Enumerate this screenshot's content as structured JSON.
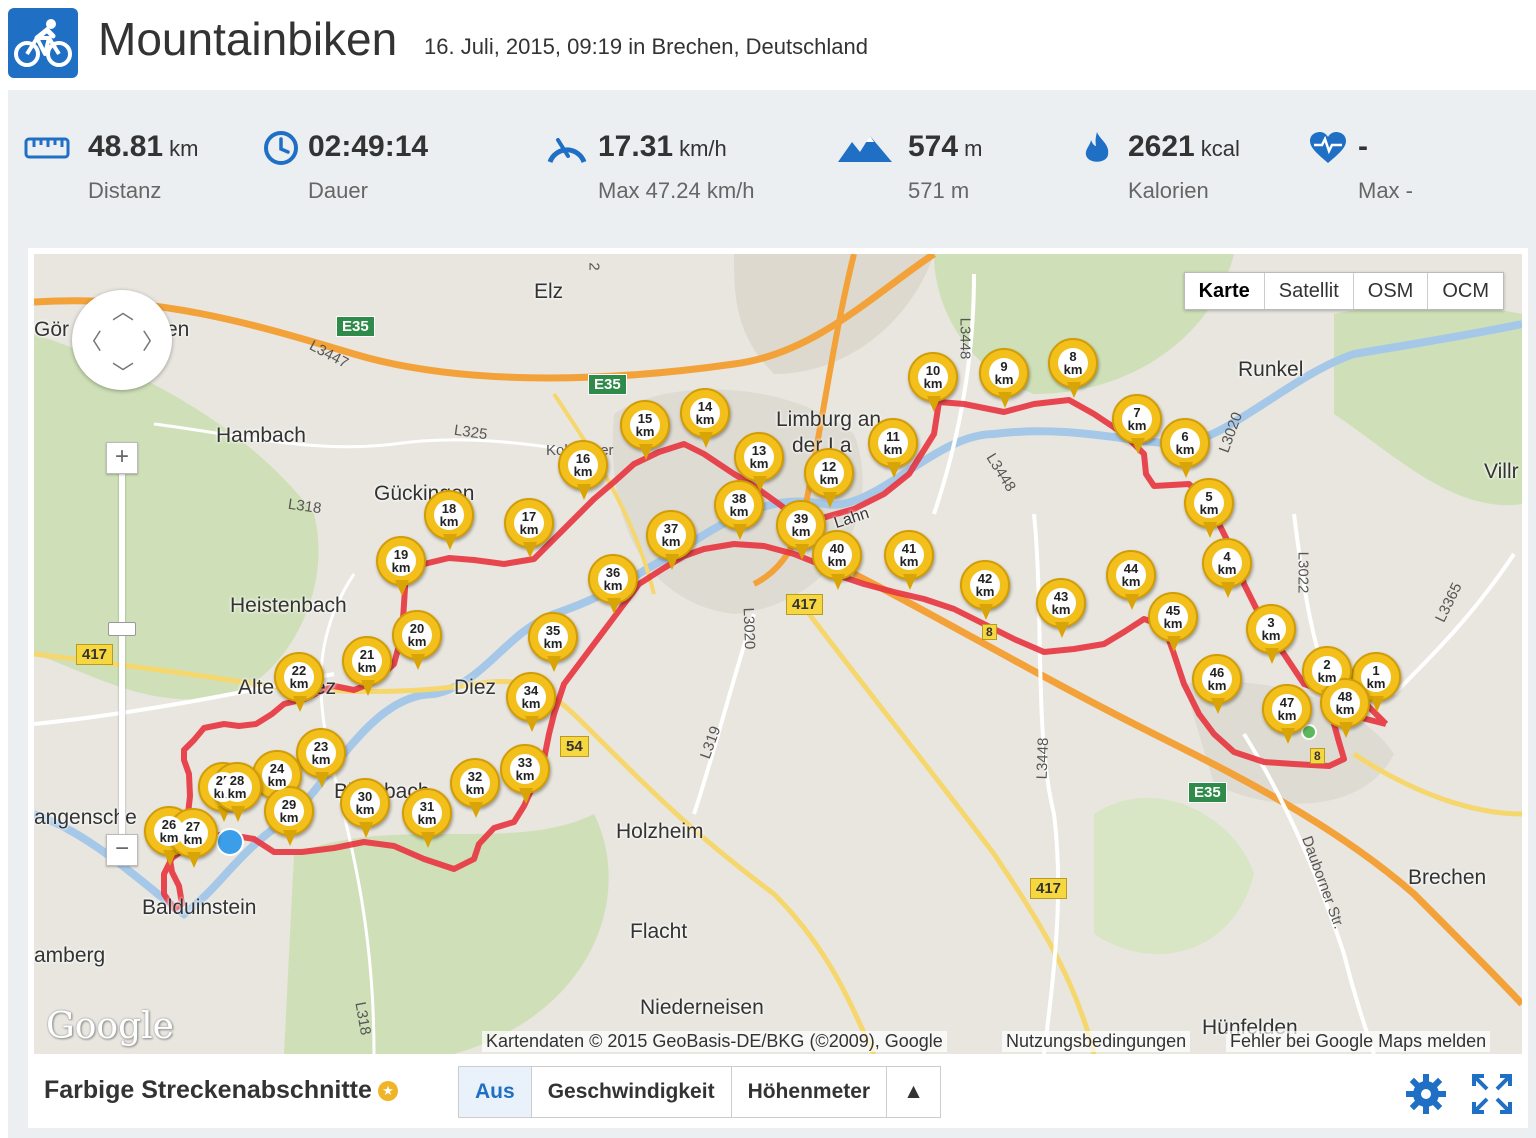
{
  "header": {
    "title": "Mountainbiken",
    "subtitle": "16. Juli, 2015, 09:19 in Brechen, Deutschland",
    "icon": "mountain-bike-icon",
    "accent": "#1f6fc5"
  },
  "stats": [
    {
      "icon": "ruler-icon",
      "value": "48.81",
      "unit": "km",
      "label": "Distanz"
    },
    {
      "icon": "clock-icon",
      "value": "02:49:14",
      "unit": "",
      "label": "Dauer"
    },
    {
      "icon": "speed-gauge-icon",
      "value": "17.31",
      "unit": "km/h",
      "label": "Max 47.24 km/h"
    },
    {
      "icon": "mountains-icon",
      "value": "574",
      "unit": "m",
      "label": "571 m"
    },
    {
      "icon": "flame-icon",
      "value": "2621",
      "unit": "kcal",
      "label": "Kalorien"
    },
    {
      "icon": "heart-rate-icon",
      "value": "-",
      "unit": "",
      "label": "Max -"
    }
  ],
  "map": {
    "types": [
      "Karte",
      "Satellit",
      "OSM",
      "OCM"
    ],
    "selected_type": "Karte",
    "places": [
      "Elz",
      "Görsdorf",
      "Hambach",
      "Gückingen",
      "Heistenbach",
      "Altendiez",
      "Diez",
      "Limburg an der Lahn",
      "Runkel",
      "Villmar",
      "Birlenbach",
      "Langenscheid",
      "Balduinstein",
      "Holzheim",
      "Flacht",
      "Niederneisen",
      "Brechen",
      "Hünfelden",
      "Lahn",
      "Dauborner Str."
    ],
    "place_labels": {
      "elz": "Elz",
      "goer": "Gör",
      "en": "en",
      "hambach": "Hambach",
      "gueckingen": "Gückingen",
      "heistenbach": "Heistenbach",
      "altendiez": "Alte",
      "ez": "ez",
      "diez": "Diez",
      "limburg1": "Limburg an",
      "limburg2": "der La",
      "runkel": "Runkel",
      "villmar": "Villr",
      "birlenbach1": "Bir",
      "birlenbach2": "bach",
      "langenscheid": "angensche",
      "balduinstein": "Balduinstein",
      "amberg": "amberg",
      "holzheim": "Holzheim",
      "flacht": "Flacht",
      "niederneisen": "Niederneisen",
      "brechen": "Brechen",
      "huenfelden": "Hünfelden",
      "lahn": "Lahn",
      "koblenzer": "Koblenzer",
      "dauborner": "Dauborner Str."
    },
    "roads": {
      "e35a": "E35",
      "e35b": "E35",
      "e35c": "E35",
      "b417a": "417",
      "b417b": "417",
      "b417c": "417",
      "b54": "54",
      "b8a": "8",
      "b8b": "8",
      "l3447": "L3447",
      "l325": "L325",
      "l318a": "L318",
      "l318b": "L318",
      "l3448a": "L3448",
      "l3448b": "L3448",
      "l3448c": "L3448",
      "l3020a": "L3020",
      "l3020b": "L3020",
      "l3022": "L3022",
      "l3365": "L3365",
      "l319": "L319",
      "r2": "2"
    },
    "markers": [
      "1",
      "2",
      "3",
      "4",
      "5",
      "6",
      "7",
      "8",
      "9",
      "10",
      "11",
      "12",
      "13",
      "14",
      "15",
      "16",
      "17",
      "18",
      "19",
      "20",
      "21",
      "22",
      "23",
      "24",
      "25",
      "26",
      "27",
      "28",
      "29",
      "30",
      "31",
      "32",
      "33",
      "34",
      "35",
      "36",
      "37",
      "38",
      "39",
      "40",
      "41",
      "42",
      "43",
      "44",
      "45",
      "46",
      "47",
      "48"
    ],
    "marker_unit": "km",
    "route_color": "#e8343f",
    "attribution": "Kartendaten © 2015 GeoBasis-DE/BKG (©2009), Google",
    "terms": "Nutzungsbedingungen",
    "report": "Fehler bei Google Maps melden",
    "logo": "Google"
  },
  "segments": {
    "title": "Farbige Streckenabschnitte",
    "buttons": [
      "Aus",
      "Geschwindigkeit",
      "Höhenmeter"
    ],
    "selected": "Aus",
    "more": "▲"
  }
}
